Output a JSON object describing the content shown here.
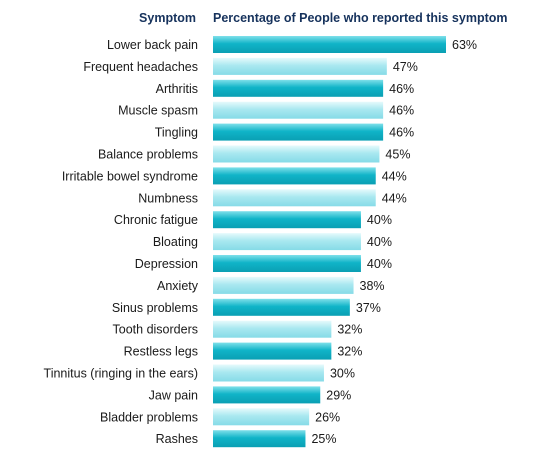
{
  "header": {
    "symptom_col": "Symptom",
    "percent_col": "Percentage of People who reported this symptom"
  },
  "colors": {
    "header_text": "#16325c",
    "bar_dark_top": "#7fe0ea",
    "bar_dark_mid": "#10b4c8",
    "bar_dark_bottom": "#0a9fb3",
    "bar_light_top": "#e6fafc",
    "bar_light_mid": "#a9e8f0",
    "bar_light_bottom": "#86dbe7"
  },
  "chart_data": {
    "type": "bar",
    "orientation": "horizontal",
    "categories": [
      "Lower back pain",
      "Frequent headaches",
      "Arthritis",
      "Muscle spasm",
      "Tingling",
      "Balance problems",
      "Irritable bowel syndrome",
      "Numbness",
      "Chronic fatigue",
      "Bloating",
      "Depression",
      "Anxiety",
      "Sinus problems",
      "Tooth disorders",
      "Restless legs",
      "Tinnitus (ringing in the ears)",
      "Jaw pain",
      "Bladder problems",
      "Rashes"
    ],
    "values": [
      63,
      47,
      46,
      46,
      46,
      45,
      44,
      44,
      40,
      40,
      40,
      38,
      37,
      32,
      32,
      30,
      29,
      26,
      25
    ],
    "value_labels": [
      "63%",
      "47%",
      "46%",
      "46%",
      "46%",
      "45%",
      "44%",
      "44%",
      "40%",
      "40%",
      "40%",
      "38%",
      "37%",
      "32%",
      "32%",
      "30%",
      "29%",
      "26%",
      "25%"
    ],
    "bar_style": [
      "dark",
      "light",
      "dark",
      "light",
      "dark",
      "light",
      "dark",
      "light",
      "dark",
      "light",
      "dark",
      "light",
      "dark",
      "light",
      "dark",
      "light",
      "dark",
      "light",
      "dark"
    ],
    "xlim": [
      0,
      63
    ],
    "grid": false,
    "legend": "none"
  }
}
